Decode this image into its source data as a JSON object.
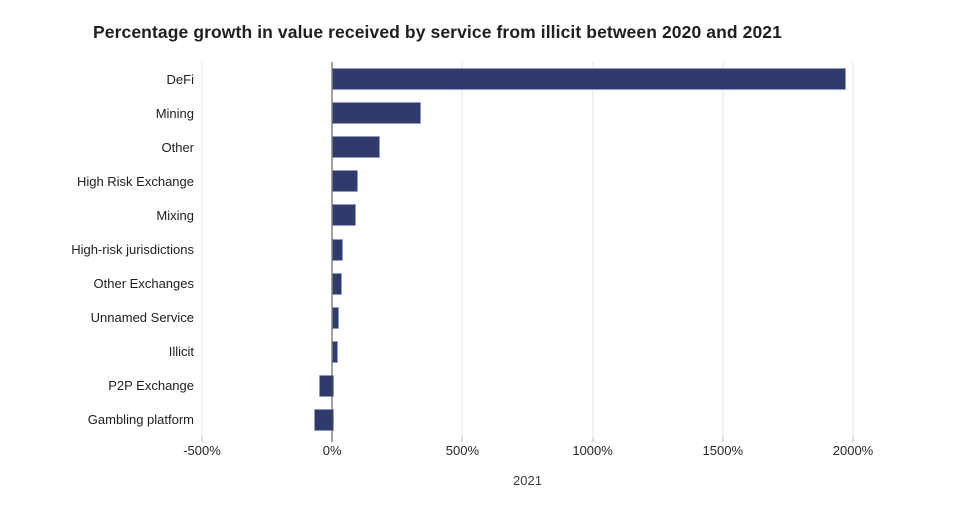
{
  "title": "Percentage growth in value received by service from illicit between 2020 and 2021",
  "chart_data": {
    "type": "bar",
    "orientation": "horizontal",
    "title": "Percentage growth in value received by service from illicit between 2020 and 2021",
    "categories": [
      "DeFi",
      "Mining",
      "Other",
      "High Risk Exchange",
      "Mixing",
      "High-risk jurisdictions",
      "Other Exchanges",
      "Unnamed Service",
      "Illicit",
      "P2P Exchange",
      "Gambling platform"
    ],
    "values": [
      1964,
      335,
      175,
      90,
      85,
      35,
      30,
      18,
      15,
      -50,
      -70
    ],
    "value_unit": "%",
    "xlabel": "2021",
    "ylabel": "",
    "xlim": [
      -500,
      2000
    ],
    "x_ticks": [
      -500,
      0,
      500,
      1000,
      1500,
      2000
    ],
    "x_tick_labels": [
      "-500%",
      "0%",
      "500%",
      "1000%",
      "1500%",
      "2000%"
    ],
    "grid": "vertical-only",
    "legend": "none",
    "colors": {
      "bar_fill": "#2e3b6b",
      "bar_border": "#919bbe",
      "gridline": "#e4e4e4",
      "zero_line": "#474747",
      "title_text": "#1f1f1f",
      "axis_text": "#272727",
      "background": "#ffffff"
    }
  }
}
